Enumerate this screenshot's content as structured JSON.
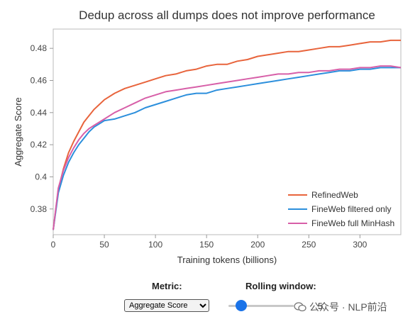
{
  "chart_data": {
    "type": "line",
    "title": "Dedup across all dumps does not improve performance",
    "xlabel": "Training tokens (billions)",
    "ylabel": "Aggregate Score",
    "xlim": [
      0,
      340
    ],
    "ylim": [
      0.364,
      0.492
    ],
    "xticks": [
      "0",
      "50",
      "100",
      "150",
      "200",
      "250",
      "300"
    ],
    "yticks": [
      "0.38",
      "0.4",
      "0.42",
      "0.44",
      "0.46",
      "0.48"
    ],
    "grid": false,
    "legend_position": "bottom-right",
    "series": [
      {
        "name": "RefinedWeb",
        "color": "#e8643c",
        "x": [
          0,
          5,
          10,
          15,
          20,
          25,
          30,
          35,
          40,
          45,
          50,
          60,
          70,
          80,
          90,
          100,
          110,
          120,
          130,
          140,
          150,
          160,
          170,
          180,
          190,
          200,
          210,
          220,
          230,
          240,
          250,
          260,
          270,
          280,
          290,
          300,
          310,
          320,
          330,
          340
        ],
        "y": [
          0.367,
          0.392,
          0.405,
          0.415,
          0.422,
          0.428,
          0.434,
          0.438,
          0.442,
          0.445,
          0.448,
          0.452,
          0.455,
          0.457,
          0.459,
          0.461,
          0.463,
          0.464,
          0.466,
          0.467,
          0.469,
          0.47,
          0.47,
          0.472,
          0.473,
          0.475,
          0.476,
          0.477,
          0.478,
          0.478,
          0.479,
          0.48,
          0.481,
          0.481,
          0.482,
          0.483,
          0.484,
          0.484,
          0.485,
          0.485
        ]
      },
      {
        "name": "FineWeb filtered only",
        "color": "#2c8fdc",
        "x": [
          0,
          5,
          10,
          15,
          20,
          25,
          30,
          35,
          40,
          45,
          50,
          60,
          70,
          80,
          90,
          100,
          110,
          120,
          130,
          140,
          150,
          160,
          170,
          180,
          190,
          200,
          210,
          220,
          230,
          240,
          250,
          260,
          270,
          280,
          290,
          300,
          310,
          320,
          330,
          340
        ],
        "y": [
          0.367,
          0.39,
          0.401,
          0.409,
          0.415,
          0.42,
          0.424,
          0.428,
          0.431,
          0.433,
          0.435,
          0.436,
          0.438,
          0.44,
          0.443,
          0.445,
          0.447,
          0.449,
          0.451,
          0.452,
          0.452,
          0.454,
          0.455,
          0.456,
          0.457,
          0.458,
          0.459,
          0.46,
          0.461,
          0.462,
          0.463,
          0.464,
          0.465,
          0.466,
          0.466,
          0.467,
          0.467,
          0.468,
          0.468,
          0.468
        ]
      },
      {
        "name": "FineWeb full MinHash",
        "color": "#d75fa8",
        "x": [
          0,
          5,
          10,
          15,
          20,
          25,
          30,
          35,
          40,
          45,
          50,
          60,
          70,
          80,
          90,
          100,
          110,
          120,
          130,
          140,
          150,
          160,
          170,
          180,
          190,
          200,
          210,
          220,
          230,
          240,
          250,
          260,
          270,
          280,
          290,
          300,
          310,
          320,
          330,
          340
        ],
        "y": [
          0.367,
          0.393,
          0.404,
          0.412,
          0.418,
          0.423,
          0.427,
          0.43,
          0.432,
          0.434,
          0.436,
          0.44,
          0.443,
          0.446,
          0.449,
          0.451,
          0.453,
          0.454,
          0.455,
          0.456,
          0.457,
          0.458,
          0.459,
          0.46,
          0.461,
          0.462,
          0.463,
          0.464,
          0.464,
          0.465,
          0.465,
          0.466,
          0.466,
          0.467,
          0.467,
          0.468,
          0.468,
          0.469,
          0.469,
          0.468
        ]
      }
    ]
  },
  "controls": {
    "metric_label": "Metric:",
    "metric_value": "Aggregate Score",
    "rolling_label": "Rolling window:",
    "rolling_value": "5",
    "rolling_fraction": 0.2
  },
  "watermark": {
    "text": "公众号 · NLP前沿"
  }
}
